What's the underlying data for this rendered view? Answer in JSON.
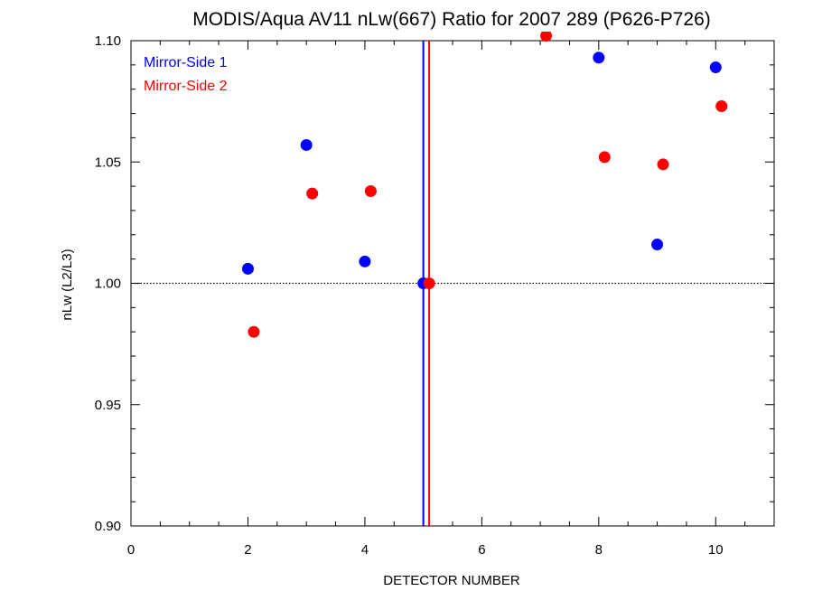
{
  "chart_data": {
    "type": "scatter",
    "title": "MODIS/Aqua AV11 nLw(667) Ratio for 2007 289 (P626-P726)",
    "xlabel": "DETECTOR NUMBER",
    "ylabel": "nLw (L2/L3)",
    "xlim": [
      0,
      11
    ],
    "ylim": [
      0.9,
      1.1
    ],
    "x_major_ticks": [
      0,
      2,
      4,
      6,
      8,
      10
    ],
    "x_tick_labels": [
      "0",
      "2",
      "4",
      "6",
      "8",
      "10"
    ],
    "x_minor_step": 0.5,
    "y_major_ticks": [
      0.9,
      0.95,
      1.0,
      1.05,
      1.1
    ],
    "y_tick_labels": [
      "0.90",
      "0.95",
      "1.00",
      "1.05",
      "1.10"
    ],
    "y_minor_step": 0.01,
    "reference_line_y": 1.0,
    "legend_placement": "top-left",
    "series": [
      {
        "name": "Mirror-Side 1",
        "color": "#0000ff",
        "vline_x": 5.0,
        "x": [
          2,
          3,
          4,
          5,
          8,
          9,
          10
        ],
        "y": [
          1.006,
          1.057,
          1.009,
          1.0,
          1.093,
          1.016,
          1.089
        ]
      },
      {
        "name": "Mirror-Side 2",
        "color": "#ff0000",
        "vline_x": 5.1,
        "x": [
          2.1,
          3.1,
          4.1,
          5.1,
          7.1,
          8.1,
          9.1,
          10.1
        ],
        "y": [
          0.98,
          1.037,
          1.038,
          1.0,
          1.102,
          1.052,
          1.049,
          1.073
        ]
      }
    ]
  }
}
